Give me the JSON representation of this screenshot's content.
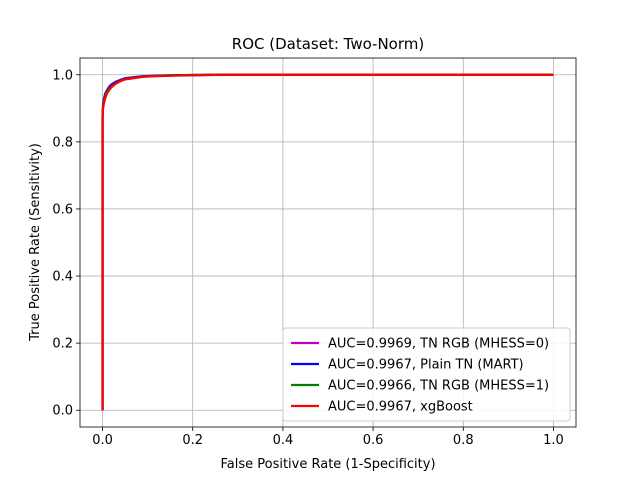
{
  "chart_data": {
    "type": "line",
    "title": "ROC (Dataset: Two-Norm)",
    "xlabel": "False Positive Rate (1-Specificity)",
    "ylabel": "True Positive Rate (Sensitivity)",
    "xlim": [
      -0.05,
      1.05
    ],
    "ylim": [
      -0.05,
      1.05
    ],
    "xticks": [
      0.0,
      0.2,
      0.4,
      0.6,
      0.8,
      1.0
    ],
    "yticks": [
      0.0,
      0.2,
      0.4,
      0.6,
      0.8,
      1.0
    ],
    "xtick_labels": [
      "0.0",
      "0.2",
      "0.4",
      "0.6",
      "0.8",
      "1.0"
    ],
    "ytick_labels": [
      "0.0",
      "0.2",
      "0.4",
      "0.6",
      "0.8",
      "1.0"
    ],
    "grid": true,
    "legend_position": "lower-right",
    "series": [
      {
        "name": "AUC=0.9969, TN RGB (MHESS=0)",
        "color": "#bf00bf",
        "x": [
          0.0,
          0.0,
          0.001,
          0.003,
          0.006,
          0.01,
          0.015,
          0.02,
          0.03,
          0.04,
          0.05,
          0.07,
          0.09,
          0.12,
          0.18,
          0.27,
          1.0
        ],
        "y": [
          0.0,
          0.88,
          0.91,
          0.93,
          0.945,
          0.955,
          0.965,
          0.972,
          0.98,
          0.985,
          0.99,
          0.993,
          0.996,
          0.998,
          0.999,
          1.0,
          1.0
        ]
      },
      {
        "name": "AUC=0.9967, Plain TN (MART)",
        "color": "#0000ff",
        "x": [
          0.0,
          0.0,
          0.001,
          0.003,
          0.006,
          0.01,
          0.015,
          0.02,
          0.03,
          0.04,
          0.05,
          0.07,
          0.09,
          0.12,
          0.18,
          0.27,
          1.0
        ],
        "y": [
          0.0,
          0.87,
          0.905,
          0.925,
          0.94,
          0.952,
          0.962,
          0.97,
          0.978,
          0.984,
          0.988,
          0.992,
          0.995,
          0.997,
          0.999,
          1.0,
          1.0
        ]
      },
      {
        "name": "AUC=0.9966, TN RGB (MHESS=1)",
        "color": "#008000",
        "x": [
          0.0,
          0.0,
          0.001,
          0.003,
          0.006,
          0.01,
          0.015,
          0.02,
          0.03,
          0.04,
          0.05,
          0.07,
          0.09,
          0.12,
          0.18,
          0.27,
          1.0
        ],
        "y": [
          0.0,
          0.875,
          0.9,
          0.92,
          0.938,
          0.95,
          0.958,
          0.966,
          0.975,
          0.982,
          0.987,
          0.991,
          0.994,
          0.997,
          0.999,
          1.0,
          1.0
        ]
      },
      {
        "name": "AUC=0.9967, xgBoost",
        "color": "#ff0000",
        "x": [
          0.0,
          0.0,
          0.001,
          0.003,
          0.006,
          0.01,
          0.015,
          0.02,
          0.03,
          0.04,
          0.05,
          0.07,
          0.09,
          0.12,
          0.18,
          0.27,
          1.0
        ],
        "y": [
          0.0,
          0.87,
          0.9,
          0.915,
          0.93,
          0.945,
          0.955,
          0.963,
          0.974,
          0.981,
          0.986,
          0.99,
          0.994,
          0.996,
          0.998,
          1.0,
          1.0
        ]
      }
    ]
  }
}
